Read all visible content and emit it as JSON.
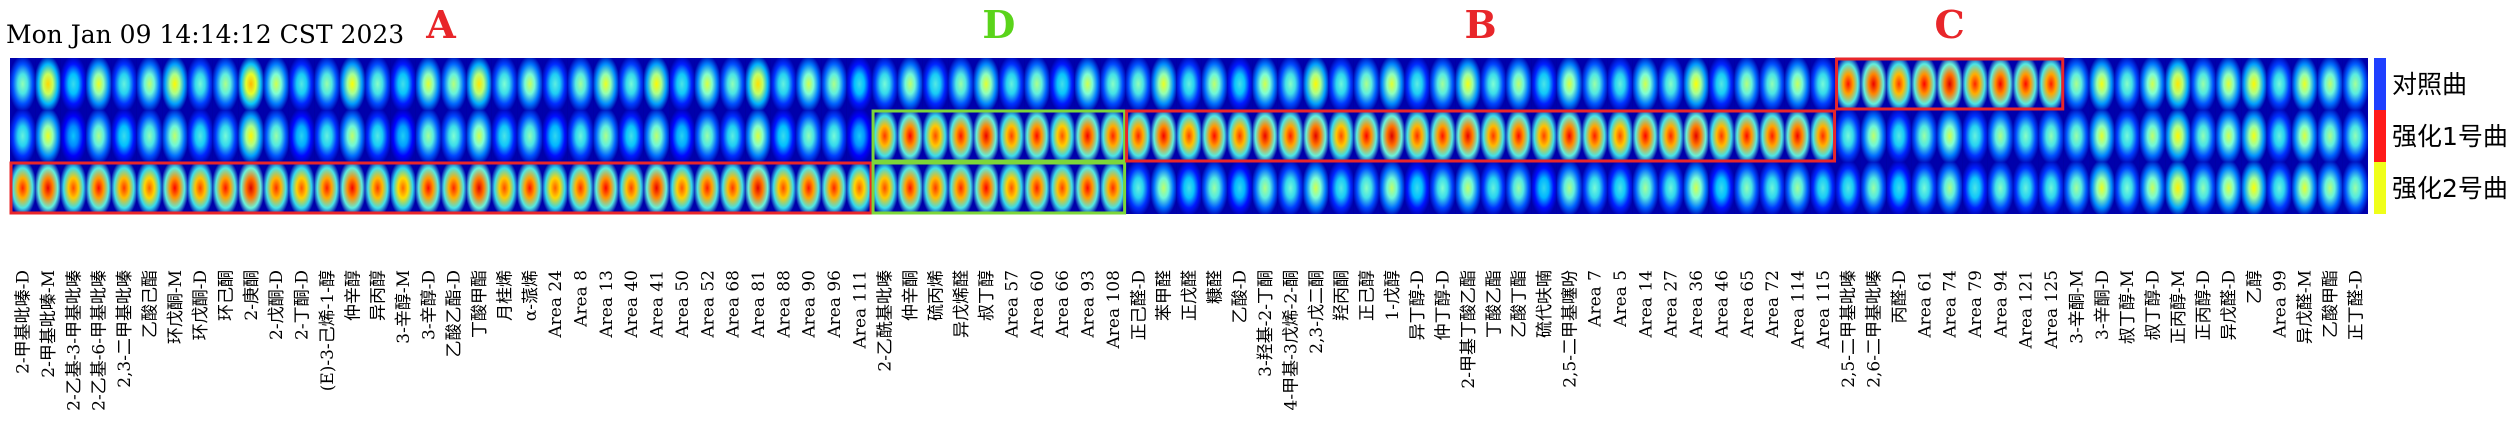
{
  "timestamp": "Mon Jan 09 14:14:12 CST 2023",
  "chart_data": {
    "type": "heatmap",
    "rows": [
      "对照曲",
      "强化1号曲",
      "强化2号曲"
    ],
    "row_colors": [
      "#1f3fff",
      "#ff1a1a",
      "#f0ff1a"
    ],
    "colormap": [
      "#00008b",
      "#0000ff",
      "#00bfff",
      "#7fffd4",
      "#ffff00",
      "#ff8c00",
      "#ff0000",
      "#8b0000"
    ],
    "group_labels": [
      {
        "text": "A",
        "color": "#e8262a"
      },
      {
        "text": "D",
        "color": "#5ad41a"
      },
      {
        "text": "B",
        "color": "#e8262a"
      },
      {
        "text": "C",
        "color": "#e8262a"
      }
    ],
    "boxes": [
      {
        "group": "A",
        "row": "强化2号曲",
        "color": "#e8262a"
      },
      {
        "group": "D",
        "row": "强化1号曲",
        "color": "#7cd63a"
      },
      {
        "group": "D",
        "row": "强化2号曲",
        "color": "#7cd63a"
      },
      {
        "group": "B",
        "row": "强化1号曲",
        "color": "#e8262a"
      },
      {
        "group": "C",
        "row": "对照曲",
        "color": "#e8262a"
      }
    ],
    "groups": [
      {
        "name": "A",
        "compounds": [
          "2-甲基吡嗪-D",
          "2-甲基吡嗪-M",
          "2-乙基-3-甲基吡嗪",
          "2-乙基-6-甲基吡嗪",
          "2,3-二甲基吡嗪",
          "乙酸己酯",
          "环戊酮-M",
          "环戊酮-D",
          "环己酮",
          "2-庚酮",
          "2-戊酮-D",
          "2-丁酮-D",
          "(E)-3-己烯-1-醇",
          "仲辛醇",
          "异丙醇",
          "3-辛醇-M",
          "3-辛醇-D",
          "乙酸乙酯-D",
          "丁酸甲酯",
          "月桂烯",
          "α-蒎烯",
          "Area 24",
          "Area 8",
          "Area 13",
          "Area 40",
          "Area 41",
          "Area 50",
          "Area 52",
          "Area 68",
          "Area 81",
          "Area 88",
          "Area 90",
          "Area 96",
          "Area 111"
        ],
        "values": [
          [
            0.45,
            0.62,
            0.35,
            0.55,
            0.4,
            0.5,
            0.58,
            0.42,
            0.48,
            0.66,
            0.52,
            0.38,
            0.46,
            0.57,
            0.44,
            0.36,
            0.54,
            0.49,
            0.6,
            0.43,
            0.51,
            0.39,
            0.47,
            0.55,
            0.42,
            0.58,
            0.37,
            0.53,
            0.45,
            0.61,
            0.4,
            0.52,
            0.48,
            0.35
          ],
          [
            0.4,
            0.55,
            0.3,
            0.48,
            0.35,
            0.45,
            0.5,
            0.38,
            0.42,
            0.58,
            0.46,
            0.33,
            0.4,
            0.5,
            0.38,
            0.32,
            0.47,
            0.43,
            0.52,
            0.37,
            0.45,
            0.34,
            0.41,
            0.48,
            0.36,
            0.5,
            0.33,
            0.46,
            0.39,
            0.53,
            0.35,
            0.45,
            0.42,
            0.31
          ],
          [
            0.82,
            0.88,
            0.78,
            0.85,
            0.8,
            0.76,
            0.86,
            0.79,
            0.84,
            0.9,
            0.81,
            0.77,
            0.83,
            0.87,
            0.8,
            0.75,
            0.85,
            0.82,
            0.89,
            0.78,
            0.84,
            0.76,
            0.81,
            0.86,
            0.79,
            0.88,
            0.77,
            0.83,
            0.8,
            0.89,
            0.78,
            0.84,
            0.82,
            0.76
          ]
        ]
      },
      {
        "name": "D",
        "compounds": [
          "2-乙酰基吡嗪",
          "仲辛酮",
          "硫丙烯",
          "异戊烯醛",
          "叔丁醇",
          "Area 57",
          "Area 60",
          "Area 66",
          "Area 93",
          "Area 108"
        ],
        "values": [
          [
            0.42,
            0.5,
            0.38,
            0.46,
            0.54,
            0.4,
            0.48,
            0.36,
            0.52,
            0.44
          ],
          [
            0.8,
            0.86,
            0.78,
            0.84,
            0.88,
            0.79,
            0.85,
            0.77,
            0.87,
            0.82
          ],
          [
            0.78,
            0.84,
            0.8,
            0.82,
            0.86,
            0.77,
            0.83,
            0.79,
            0.85,
            0.81
          ]
        ]
      },
      {
        "name": "B",
        "compounds": [
          "正己醛-D",
          "苯甲醛",
          "正戊醛",
          "糠醛",
          "乙酸-D",
          "3-羟基-2-丁酮",
          "4-甲基-3戊烯-2-酮",
          "2,3-戊二酮",
          "羟丙酮",
          "正己醇",
          "1-戊醇",
          "异丁醇-D",
          "仲丁醇-D",
          "2-甲基丁酸乙酯",
          "丁酸乙酯",
          "乙酸丁酯",
          "硫代呋喃",
          "2,5-二甲基噻吩",
          "Area 7",
          "Area 5",
          "Area 14",
          "Area 27",
          "Area 36",
          "Area 46",
          "Area 65",
          "Area 72",
          "Area 114",
          "Area 115"
        ],
        "values": [
          [
            0.45,
            0.55,
            0.4,
            0.5,
            0.36,
            0.52,
            0.44,
            0.58,
            0.41,
            0.48,
            0.54,
            0.39,
            0.47,
            0.56,
            0.43,
            0.5,
            0.37,
            0.53,
            0.46,
            0.4,
            0.52,
            0.44,
            0.57,
            0.38,
            0.49,
            0.45,
            0.51,
            0.42
          ],
          [
            0.82,
            0.87,
            0.79,
            0.85,
            0.8,
            0.88,
            0.83,
            0.89,
            0.78,
            0.86,
            0.9,
            0.81,
            0.84,
            0.88,
            0.8,
            0.85,
            0.79,
            0.87,
            0.83,
            0.78,
            0.86,
            0.82,
            0.89,
            0.8,
            0.85,
            0.83,
            0.87,
            0.81
          ],
          [
            0.4,
            0.5,
            0.36,
            0.46,
            0.34,
            0.48,
            0.42,
            0.52,
            0.38,
            0.44,
            0.5,
            0.35,
            0.43,
            0.5,
            0.4,
            0.46,
            0.34,
            0.48,
            0.42,
            0.37,
            0.47,
            0.41,
            0.52,
            0.35,
            0.45,
            0.41,
            0.47,
            0.38
          ]
        ]
      },
      {
        "name": "C",
        "compounds": [
          "2,5-二甲基吡嗪",
          "2,6-二甲基吡嗪",
          "丙醛-D",
          "Area 61",
          "Area 74",
          "Area 79",
          "Area 94",
          "Area 121",
          "Area 125"
        ],
        "values": [
          [
            0.84,
            0.88,
            0.8,
            0.86,
            0.9,
            0.82,
            0.87,
            0.85,
            0.83
          ],
          [
            0.42,
            0.5,
            0.38,
            0.46,
            0.52,
            0.4,
            0.48,
            0.44,
            0.45
          ],
          [
            0.38,
            0.46,
            0.35,
            0.42,
            0.48,
            0.37,
            0.44,
            0.4,
            0.41
          ]
        ]
      },
      {
        "name": "",
        "compounds": [
          "3-辛酮-M",
          "3-辛酮-D",
          "叔丁醇-M",
          "叔丁醇-D",
          "正丙醇-M",
          "正丙醇-D",
          "异戊醛-D",
          "乙醇",
          "Area 99",
          "异戊醛-M",
          "乙酸甲酯",
          "正丁醛-D"
        ],
        "values": [
          [
            0.48,
            0.56,
            0.44,
            0.52,
            0.6,
            0.46,
            0.54,
            0.58,
            0.42,
            0.55,
            0.5,
            0.47
          ],
          [
            0.46,
            0.54,
            0.42,
            0.5,
            0.58,
            0.45,
            0.52,
            0.56,
            0.4,
            0.53,
            0.48,
            0.45
          ],
          [
            0.47,
            0.55,
            0.43,
            0.51,
            0.59,
            0.45,
            0.53,
            0.57,
            0.41,
            0.54,
            0.49,
            0.46
          ]
        ]
      }
    ]
  }
}
